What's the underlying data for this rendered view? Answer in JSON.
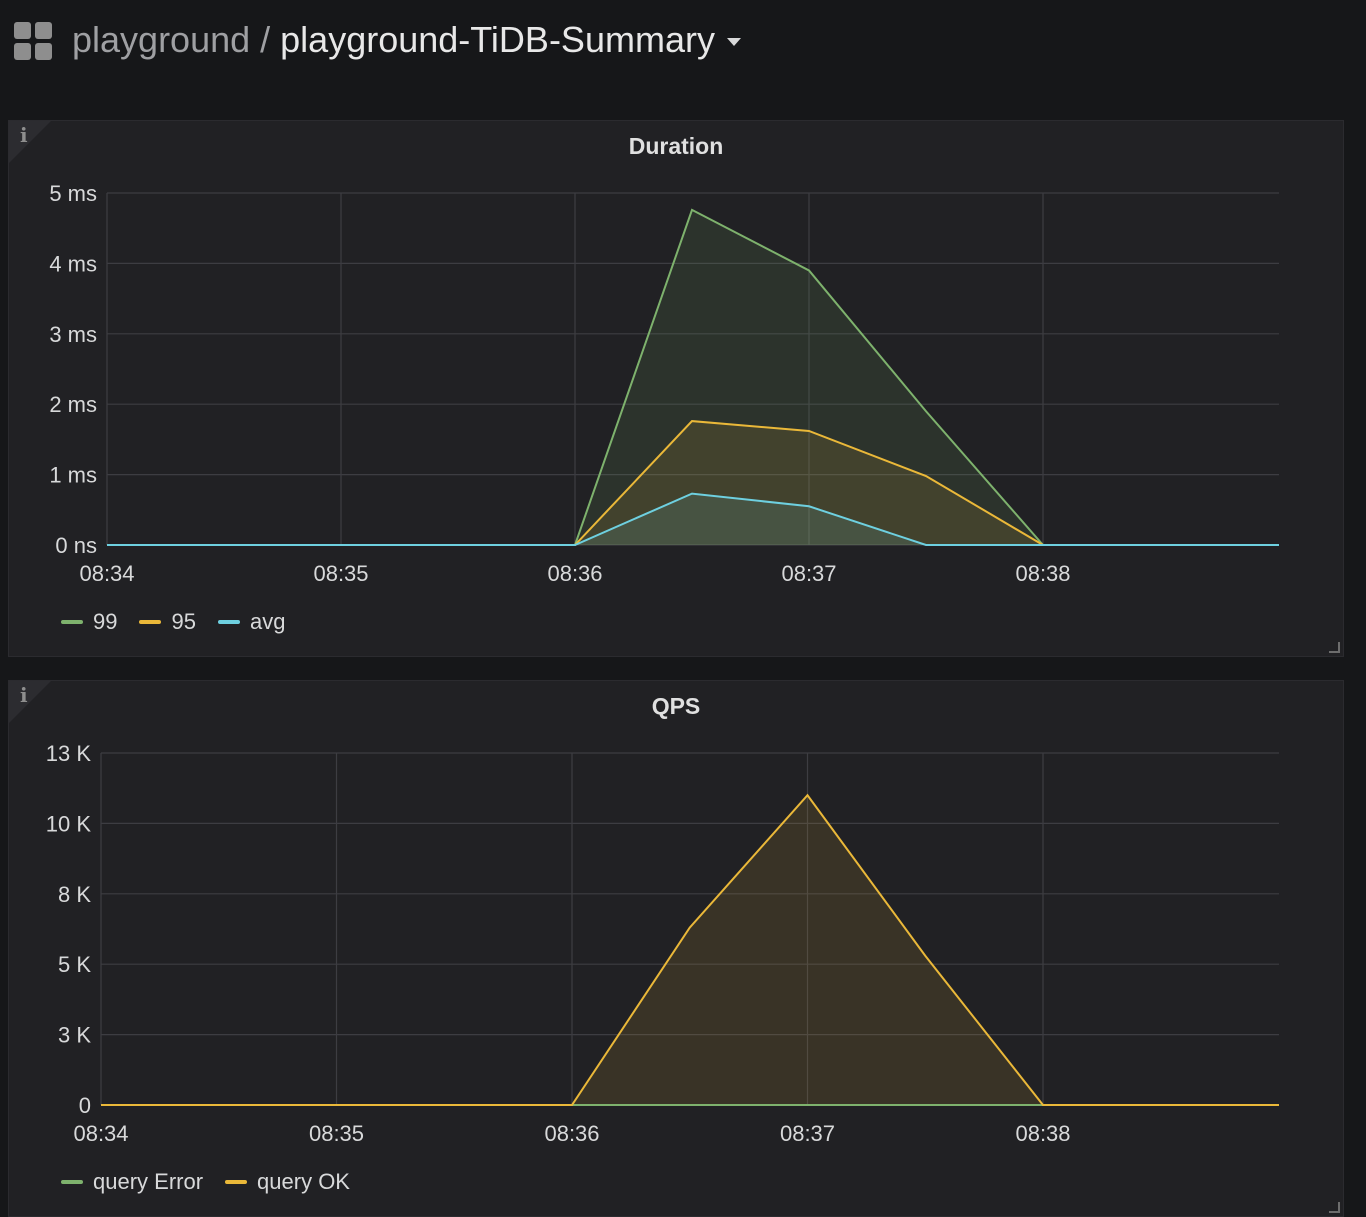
{
  "breadcrumb": {
    "folder": "playground",
    "separator": "/",
    "dashboard": "playground-TiDB-Summary"
  },
  "icons": {
    "apps": "grid-icon",
    "info": "info-icon",
    "caret": "caret-down-icon",
    "resize": "resize-handle-icon"
  },
  "panels": [
    {
      "title": "Duration",
      "info_glyph": "i",
      "legend": [
        {
          "name": "99",
          "color": "#7eb26d"
        },
        {
          "name": "95",
          "color": "#eab839"
        },
        {
          "name": "avg",
          "color": "#6ed0e0"
        }
      ]
    },
    {
      "title": "QPS",
      "info_glyph": "i",
      "legend": [
        {
          "name": "query Error",
          "color": "#7eb26d"
        },
        {
          "name": "query OK",
          "color": "#eab839"
        }
      ]
    }
  ],
  "chart_data": [
    {
      "type": "area",
      "title": "Duration",
      "x": [
        "08:34",
        "08:34:30",
        "08:35",
        "08:35:30",
        "08:36",
        "08:36:30",
        "08:37",
        "08:37:30",
        "08:38",
        "08:38:30"
      ],
      "x_ticks": [
        "08:34",
        "08:35",
        "08:36",
        "08:37",
        "08:38"
      ],
      "y_ticks": [
        "0 ns",
        "1 ms",
        "2 ms",
        "3 ms",
        "4 ms",
        "5 ms"
      ],
      "ylim": [
        0,
        5
      ],
      "yunit": "ms",
      "grid": true,
      "legend_position": "bottom-left",
      "series": [
        {
          "name": "99",
          "color": "#7eb26d",
          "values": [
            0,
            0,
            0,
            0,
            0,
            4.76,
            3.9,
            1.9,
            0,
            0
          ]
        },
        {
          "name": "95",
          "color": "#eab839",
          "values": [
            0,
            0,
            0,
            0,
            0,
            1.76,
            1.62,
            0.98,
            0,
            0
          ]
        },
        {
          "name": "avg",
          "color": "#6ed0e0",
          "values": [
            0,
            0,
            0,
            0,
            0,
            0.73,
            0.55,
            0,
            0,
            0
          ]
        }
      ]
    },
    {
      "type": "area",
      "title": "QPS",
      "x": [
        "08:34",
        "08:34:30",
        "08:35",
        "08:35:30",
        "08:36",
        "08:36:30",
        "08:37",
        "08:37:30",
        "08:38",
        "08:38:30"
      ],
      "x_ticks": [
        "08:34",
        "08:35",
        "08:36",
        "08:37",
        "08:38"
      ],
      "y_ticks": [
        "0",
        "3 K",
        "5 K",
        "8 K",
        "10 K",
        "13 K"
      ],
      "ylim": [
        0,
        12500
      ],
      "grid": true,
      "legend_position": "bottom-left",
      "series": [
        {
          "name": "query Error",
          "color": "#7eb26d",
          "values": [
            0,
            0,
            0,
            0,
            0,
            0,
            0,
            0,
            0,
            0
          ]
        },
        {
          "name": "query OK",
          "color": "#eab839",
          "values": [
            0,
            0,
            0,
            0,
            0,
            6300,
            11000,
            5300,
            0,
            0
          ]
        }
      ]
    }
  ]
}
